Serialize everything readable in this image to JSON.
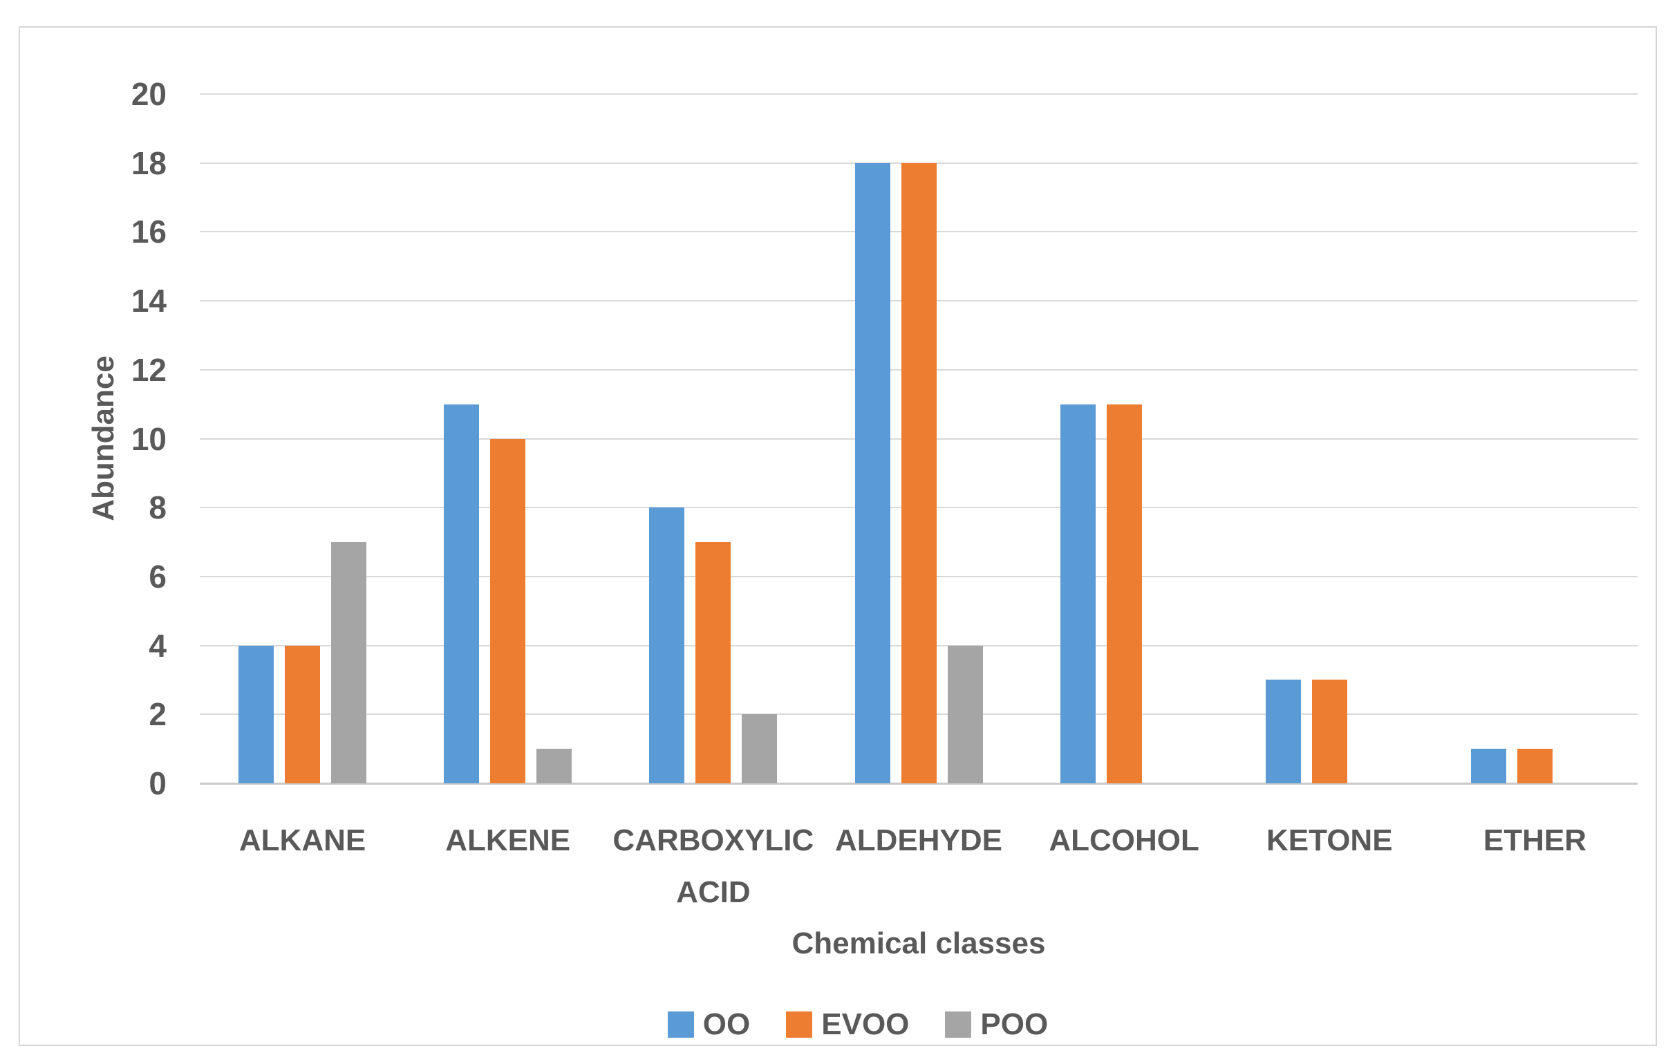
{
  "chart_data": {
    "type": "bar",
    "title": "",
    "categories": [
      "ALKANE",
      "ALKENE",
      "CARBOXYLIC ACID",
      "ALDEHYDE",
      "ALCOHOL",
      "KETONE",
      "ETHER"
    ],
    "category_label_lines": [
      [
        "ALKANE"
      ],
      [
        "ALKENE"
      ],
      [
        "CARBOXYLIC",
        "ACID"
      ],
      [
        "ALDEHYDE"
      ],
      [
        "ALCOHOL"
      ],
      [
        "KETONE"
      ],
      [
        "ETHER"
      ]
    ],
    "series": [
      {
        "name": "OO",
        "color": "#5B9BD5",
        "values": [
          4,
          11,
          8,
          18,
          11,
          3,
          1
        ]
      },
      {
        "name": "EVOO",
        "color": "#ED7D31",
        "values": [
          4,
          10,
          7,
          18,
          11,
          3,
          1
        ]
      },
      {
        "name": "POO",
        "color": "#A5A5A5",
        "values": [
          7,
          1,
          2,
          4,
          0,
          0,
          0
        ]
      }
    ],
    "xlabel": "Chemical classes",
    "ylabel": "Abundance",
    "ylim": [
      0,
      20
    ],
    "ytick_step": 2,
    "yticks": [
      "0",
      "2",
      "4",
      "6",
      "8",
      "10",
      "12",
      "14",
      "16",
      "18",
      "20"
    ],
    "grid": "horizontal",
    "legend_position": "bottom",
    "legend_entries": [
      "OO",
      "EVOO",
      "POO"
    ]
  },
  "styles": {
    "text_color": "#595959",
    "gridline_color": "#D9D9D9",
    "baseline_color": "#C9C9C9",
    "frame_border_color": "#D5D5D5",
    "background_color": "#FFFFFF"
  }
}
